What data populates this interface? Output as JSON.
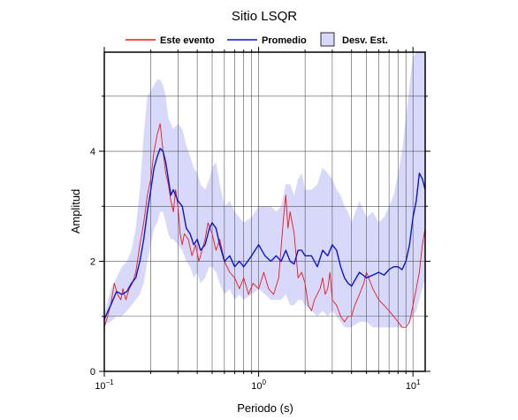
{
  "chart_data": {
    "type": "line",
    "title": "Sitio LSQR",
    "xlabel": "Periodo (s)",
    "ylabel": "Amplitud",
    "x_scale": "log",
    "xlim": [
      0.1,
      12
    ],
    "ylim": [
      0,
      5.8
    ],
    "grid": true,
    "legend_position": "top",
    "x_ticks": [
      {
        "value": 0.1,
        "base": "10",
        "exp": "−1"
      },
      {
        "value": 1,
        "base": "10",
        "exp": "0"
      },
      {
        "value": 10,
        "base": "10",
        "exp": "1"
      }
    ],
    "y_ticks": [
      {
        "value": 0,
        "label": "0"
      },
      {
        "value": 2,
        "label": "2"
      },
      {
        "value": 4,
        "label": "4"
      }
    ],
    "legend": {
      "event_label": "Este evento",
      "mean_label": "Promedio",
      "std_label": "Desv. Est."
    },
    "colors": {
      "event": "#e8191e",
      "mean": "#0b16c8",
      "std_fill": "#d8d8fb"
    },
    "series": [
      {
        "name": "Este evento",
        "x": [
          0.1,
          0.105,
          0.11,
          0.116,
          0.122,
          0.128,
          0.132,
          0.138,
          0.145,
          0.152,
          0.16,
          0.17,
          0.18,
          0.19,
          0.2,
          0.21,
          0.22,
          0.23,
          0.24,
          0.25,
          0.26,
          0.27,
          0.28,
          0.29,
          0.3,
          0.31,
          0.32,
          0.33,
          0.35,
          0.37,
          0.39,
          0.41,
          0.43,
          0.45,
          0.47,
          0.5,
          0.53,
          0.56,
          0.6,
          0.65,
          0.7,
          0.75,
          0.8,
          0.86,
          0.92,
          1.0,
          1.08,
          1.16,
          1.25,
          1.35,
          1.45,
          1.5,
          1.55,
          1.6,
          1.7,
          1.8,
          1.9,
          2.0,
          2.1,
          2.2,
          2.3,
          2.5,
          2.6,
          2.7,
          2.8,
          2.9,
          3.0,
          3.2,
          3.4,
          3.6,
          3.8,
          4.0,
          4.2,
          4.5,
          4.8,
          5.0,
          5.5,
          6.0,
          6.5,
          7.0,
          7.5,
          8.0,
          8.5,
          9.0,
          9.5,
          10.0,
          10.5,
          11.0,
          11.5,
          12.0
        ],
        "y": [
          0.8,
          1.0,
          1.2,
          1.6,
          1.4,
          1.3,
          1.5,
          1.3,
          1.5,
          1.6,
          1.8,
          2.3,
          2.7,
          3.2,
          3.5,
          4.0,
          4.3,
          4.5,
          4.0,
          3.6,
          3.4,
          3.1,
          2.9,
          3.3,
          3.0,
          2.5,
          2.3,
          2.5,
          2.4,
          2.1,
          2.3,
          2.0,
          2.2,
          2.4,
          2.7,
          2.5,
          2.2,
          2.4,
          2.0,
          1.8,
          1.7,
          1.5,
          1.7,
          1.4,
          1.6,
          1.5,
          1.8,
          1.5,
          1.4,
          1.7,
          2.8,
          3.2,
          2.6,
          2.9,
          2.5,
          1.7,
          1.8,
          1.6,
          1.2,
          1.1,
          1.3,
          1.5,
          1.7,
          1.4,
          1.5,
          1.8,
          1.3,
          1.2,
          1.0,
          0.9,
          1.0,
          1.0,
          1.2,
          1.4,
          1.6,
          1.8,
          1.5,
          1.3,
          1.2,
          1.1,
          1.0,
          0.9,
          0.8,
          0.8,
          0.9,
          1.2,
          1.5,
          1.8,
          2.3,
          2.6
        ]
      },
      {
        "name": "Promedio",
        "x": [
          0.1,
          0.11,
          0.12,
          0.13,
          0.14,
          0.15,
          0.16,
          0.17,
          0.18,
          0.19,
          0.2,
          0.21,
          0.22,
          0.23,
          0.24,
          0.25,
          0.26,
          0.27,
          0.28,
          0.3,
          0.32,
          0.34,
          0.36,
          0.38,
          0.4,
          0.42,
          0.45,
          0.48,
          0.5,
          0.53,
          0.56,
          0.6,
          0.65,
          0.7,
          0.75,
          0.8,
          0.9,
          1.0,
          1.1,
          1.2,
          1.3,
          1.4,
          1.5,
          1.6,
          1.7,
          1.8,
          1.9,
          2.0,
          2.2,
          2.4,
          2.6,
          2.8,
          3.0,
          3.2,
          3.4,
          3.6,
          3.8,
          4.0,
          4.5,
          5.0,
          5.5,
          6.0,
          6.5,
          7.0,
          7.5,
          8.0,
          8.5,
          9.0,
          9.5,
          10.0,
          10.5,
          11.0,
          11.5,
          12.0
        ],
        "y": [
          0.95,
          1.2,
          1.45,
          1.4,
          1.45,
          1.6,
          1.7,
          2.0,
          2.4,
          2.9,
          3.3,
          3.7,
          3.9,
          4.05,
          4.0,
          3.8,
          3.5,
          3.2,
          3.3,
          3.1,
          3.0,
          2.6,
          2.5,
          2.3,
          2.4,
          2.2,
          2.3,
          2.6,
          2.7,
          2.6,
          2.3,
          2.0,
          2.1,
          1.9,
          2.0,
          1.9,
          2.1,
          2.3,
          2.1,
          2.0,
          2.1,
          2.0,
          2.2,
          2.0,
          1.95,
          2.2,
          2.2,
          2.1,
          2.1,
          1.9,
          2.2,
          2.1,
          2.3,
          2.2,
          1.9,
          1.7,
          1.6,
          1.55,
          1.8,
          1.7,
          1.75,
          1.8,
          1.75,
          1.85,
          1.9,
          1.9,
          1.85,
          2.0,
          2.3,
          2.8,
          3.1,
          3.6,
          3.5,
          3.3
        ]
      }
    ],
    "std_band": {
      "x": [
        0.1,
        0.11,
        0.12,
        0.13,
        0.14,
        0.15,
        0.16,
        0.17,
        0.18,
        0.19,
        0.2,
        0.21,
        0.22,
        0.23,
        0.24,
        0.25,
        0.26,
        0.27,
        0.28,
        0.3,
        0.32,
        0.34,
        0.36,
        0.38,
        0.4,
        0.42,
        0.45,
        0.48,
        0.5,
        0.53,
        0.56,
        0.6,
        0.65,
        0.7,
        0.75,
        0.8,
        0.9,
        1.0,
        1.1,
        1.2,
        1.3,
        1.4,
        1.5,
        1.6,
        1.7,
        1.8,
        1.9,
        2.0,
        2.2,
        2.4,
        2.6,
        2.8,
        3.0,
        3.2,
        3.4,
        3.6,
        3.8,
        4.0,
        4.5,
        5.0,
        5.5,
        6.0,
        6.5,
        7.0,
        7.5,
        8.0,
        8.5,
        9.0,
        9.5,
        10.0,
        10.5,
        11.0,
        11.5,
        12.0
      ],
      "upper": [
        1.0,
        1.5,
        1.7,
        1.9,
        2.0,
        2.2,
        2.6,
        3.3,
        4.3,
        5.0,
        5.1,
        5.2,
        5.3,
        5.3,
        5.2,
        5.0,
        4.6,
        4.5,
        4.4,
        4.5,
        4.4,
        4.1,
        3.9,
        3.7,
        3.6,
        3.4,
        3.3,
        3.5,
        3.7,
        3.8,
        3.4,
        3.0,
        3.1,
        2.9,
        2.8,
        2.7,
        2.8,
        3.0,
        3.0,
        3.0,
        2.9,
        3.0,
        3.4,
        3.4,
        3.2,
        3.5,
        3.6,
        3.3,
        3.3,
        3.4,
        3.7,
        3.6,
        3.5,
        3.3,
        3.2,
        3.0,
        2.9,
        2.7,
        3.1,
        2.8,
        2.9,
        2.7,
        2.8,
        3.0,
        3.2,
        3.6,
        4.0,
        4.6,
        5.2,
        5.7,
        5.8,
        5.8,
        5.8,
        5.8
      ],
      "lower": [
        0.85,
        0.9,
        1.0,
        1.0,
        1.1,
        1.2,
        1.3,
        1.4,
        1.6,
        2.0,
        2.3,
        2.6,
        2.7,
        2.9,
        2.9,
        2.7,
        2.5,
        2.4,
        2.4,
        2.3,
        2.2,
        2.0,
        1.9,
        1.7,
        1.8,
        1.6,
        1.7,
        1.9,
        1.9,
        1.8,
        1.6,
        1.4,
        1.5,
        1.3,
        1.4,
        1.3,
        1.4,
        1.5,
        1.4,
        1.3,
        1.3,
        1.3,
        1.4,
        1.2,
        1.2,
        1.3,
        1.3,
        1.2,
        1.1,
        1.0,
        1.1,
        1.0,
        1.1,
        1.0,
        0.9,
        0.8,
        0.8,
        0.8,
        0.9,
        0.9,
        0.8,
        0.8,
        0.8,
        0.8,
        0.8,
        0.8,
        0.8,
        0.85,
        0.9,
        1.0,
        1.1,
        1.3,
        1.5,
        1.7
      ]
    }
  }
}
